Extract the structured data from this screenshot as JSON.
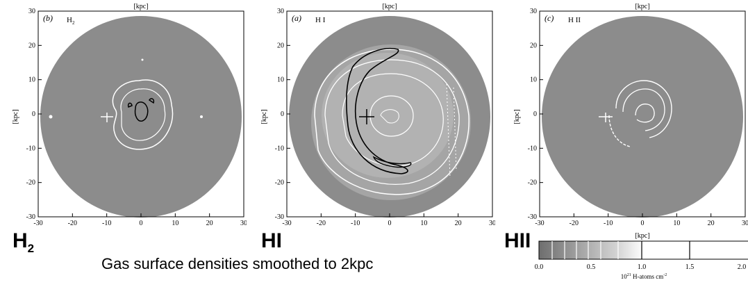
{
  "panels": [
    {
      "letter": "(b)",
      "species": "H",
      "species_sub": "2",
      "big_label": "H",
      "big_sub": "2"
    },
    {
      "letter": "(a)",
      "species": "H I",
      "species_sub": "",
      "big_label": "HI",
      "big_sub": ""
    },
    {
      "letter": "(c)",
      "species": "H II",
      "species_sub": "",
      "big_label": "HII",
      "big_sub": ""
    }
  ],
  "axis_unit": "[kpc]",
  "ticks": [
    "-30",
    "-20",
    "-10",
    "0",
    "10",
    "20",
    "30"
  ],
  "caption": "Gas surface densities smoothed to 2kpc",
  "colorbar": {
    "ticks": [
      "0.0",
      "0.5",
      "1.0",
      "1.5",
      "2.0"
    ],
    "label": "10",
    "label_exp": "21",
    "label_rest": " H-atoms cm",
    "label_exp2": "-2"
  }
}
